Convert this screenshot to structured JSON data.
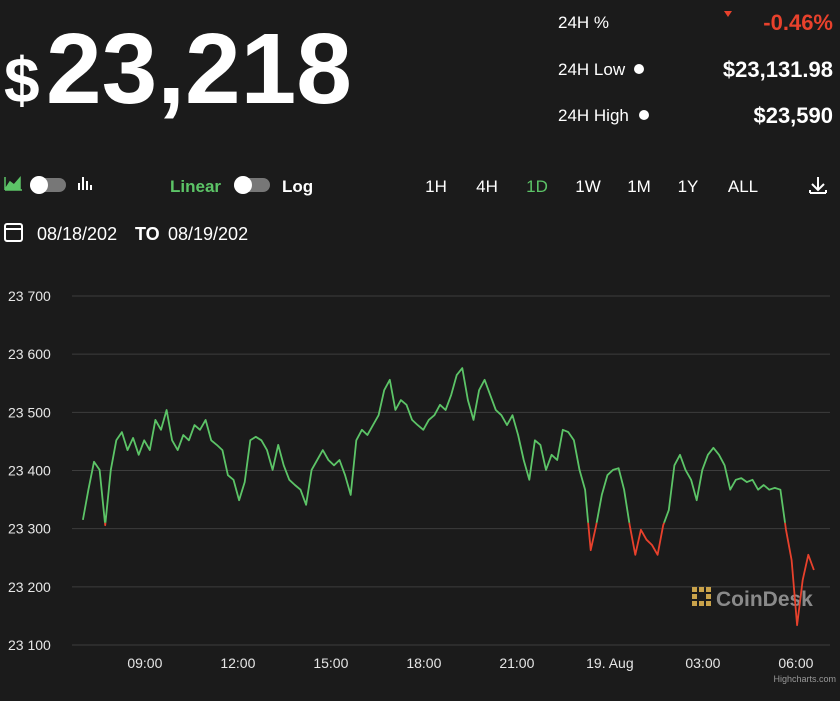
{
  "header": {
    "currency": "$",
    "price": "23,218",
    "stats": [
      {
        "label": "24H %",
        "value": "-0.46%"
      },
      {
        "label": "24H Low",
        "value": "$23,131.98"
      },
      {
        "label": "24H High",
        "value": "$23,590"
      }
    ]
  },
  "controls": {
    "scale_linear": "Linear",
    "scale_log": "Log",
    "ranges": [
      "1H",
      "4H",
      "1D",
      "1W",
      "1M",
      "1Y",
      "ALL"
    ],
    "active_range": 2,
    "date_from": "08/18/202",
    "date_sep": "TO",
    "date_to": "08/19/202"
  },
  "chart_data": {
    "type": "line",
    "watermark": "CoinDesk",
    "credit": "Highcharts.com",
    "color": "#5cc467",
    "below_color": "#e8412c",
    "threshold": 23310,
    "xlim": [
      6.65,
      31.1
    ],
    "xticks": [
      {
        "value": 9,
        "label": "09:00"
      },
      {
        "value": 12,
        "label": "12:00"
      },
      {
        "value": 15,
        "label": "15:00"
      },
      {
        "value": 18,
        "label": "18:00"
      },
      {
        "value": 21,
        "label": "21:00"
      },
      {
        "value": 24,
        "label": "19. Aug"
      },
      {
        "value": 27,
        "label": "03:00"
      },
      {
        "value": 30,
        "label": "06:00"
      }
    ],
    "ylim": [
      23100,
      23700
    ],
    "yticks": [
      {
        "value": 23100,
        "label": "23 100"
      },
      {
        "value": 23200,
        "label": "23 200"
      },
      {
        "value": 23300,
        "label": "23 300"
      },
      {
        "value": 23400,
        "label": "23 400"
      },
      {
        "value": 23500,
        "label": "23 500"
      },
      {
        "value": 23600,
        "label": "23 600"
      },
      {
        "value": 23700,
        "label": "23 700"
      }
    ],
    "grid": true,
    "x": [
      7,
      7.18,
      7.36,
      7.54,
      7.72,
      7.9,
      8.08,
      8.26,
      8.44,
      8.62,
      8.8,
      8.98,
      9.16,
      9.34,
      9.52,
      9.7,
      9.88,
      10.06,
      10.24,
      10.42,
      10.6,
      10.78,
      10.96,
      11.14,
      11.32,
      11.5,
      11.68,
      11.86,
      12.04,
      12.22,
      12.4,
      12.58,
      12.76,
      12.94,
      13.12,
      13.3,
      13.48,
      13.66,
      13.84,
      14.02,
      14.2,
      14.38,
      14.56,
      14.74,
      14.92,
      15.1,
      15.28,
      15.46,
      15.64,
      15.82,
      16,
      16.18,
      16.36,
      16.54,
      16.72,
      16.9,
      17.08,
      17.26,
      17.44,
      17.62,
      17.8,
      17.98,
      18.16,
      18.34,
      18.52,
      18.7,
      18.88,
      19.06,
      19.24,
      19.42,
      19.6,
      19.78,
      19.96,
      20.14,
      20.32,
      20.5,
      20.68,
      20.86,
      21.04,
      21.22,
      21.4,
      21.58,
      21.76,
      21.94,
      22.12,
      22.3,
      22.48,
      22.66,
      22.84,
      23.02,
      23.2,
      23.38,
      23.56,
      23.74,
      23.92,
      24.1,
      24.28,
      24.46,
      24.64,
      24.82,
      25,
      25.18,
      25.36,
      25.54,
      25.72,
      25.9,
      26.08,
      26.26,
      26.44,
      26.62,
      26.8,
      26.98,
      27.16,
      27.34,
      27.52,
      27.7,
      27.88,
      28.06,
      28.24,
      28.42,
      28.6,
      28.78,
      28.96,
      29.14,
      29.32,
      29.5,
      29.68,
      29.86,
      30.04,
      30.22,
      30.4,
      30.58
    ],
    "values": [
      23315,
      23367,
      23415,
      23401,
      23306,
      23401,
      23452,
      23466,
      23435,
      23456,
      23427,
      23452,
      23435,
      23487,
      23470,
      23504,
      23452,
      23435,
      23461,
      23452,
      23478,
      23470,
      23487,
      23452,
      23444,
      23435,
      23392,
      23384,
      23349,
      23380,
      23452,
      23458,
      23452,
      23435,
      23401,
      23444,
      23409,
      23384,
      23375,
      23367,
      23341,
      23401,
      23418,
      23435,
      23418,
      23409,
      23418,
      23392,
      23358,
      23452,
      23470,
      23461,
      23478,
      23495,
      23538,
      23556,
      23504,
      23521,
      23513,
      23487,
      23478,
      23470,
      23487,
      23495,
      23513,
      23504,
      23530,
      23564,
      23576,
      23521,
      23487,
      23538,
      23556,
      23530,
      23504,
      23495,
      23478,
      23495,
      23461,
      23418,
      23384,
      23452,
      23444,
      23401,
      23427,
      23418,
      23470,
      23466,
      23452,
      23401,
      23367,
      23263,
      23306,
      23358,
      23392,
      23401,
      23404,
      23367,
      23306,
      23255,
      23298,
      23281,
      23272,
      23255,
      23306,
      23332,
      23409,
      23427,
      23401,
      23384,
      23349,
      23401,
      23427,
      23439,
      23427,
      23409,
      23367,
      23384,
      23387,
      23380,
      23384,
      23367,
      23375,
      23367,
      23370,
      23367,
      23298,
      23246,
      23134,
      23212,
      23255,
      23229
    ]
  }
}
